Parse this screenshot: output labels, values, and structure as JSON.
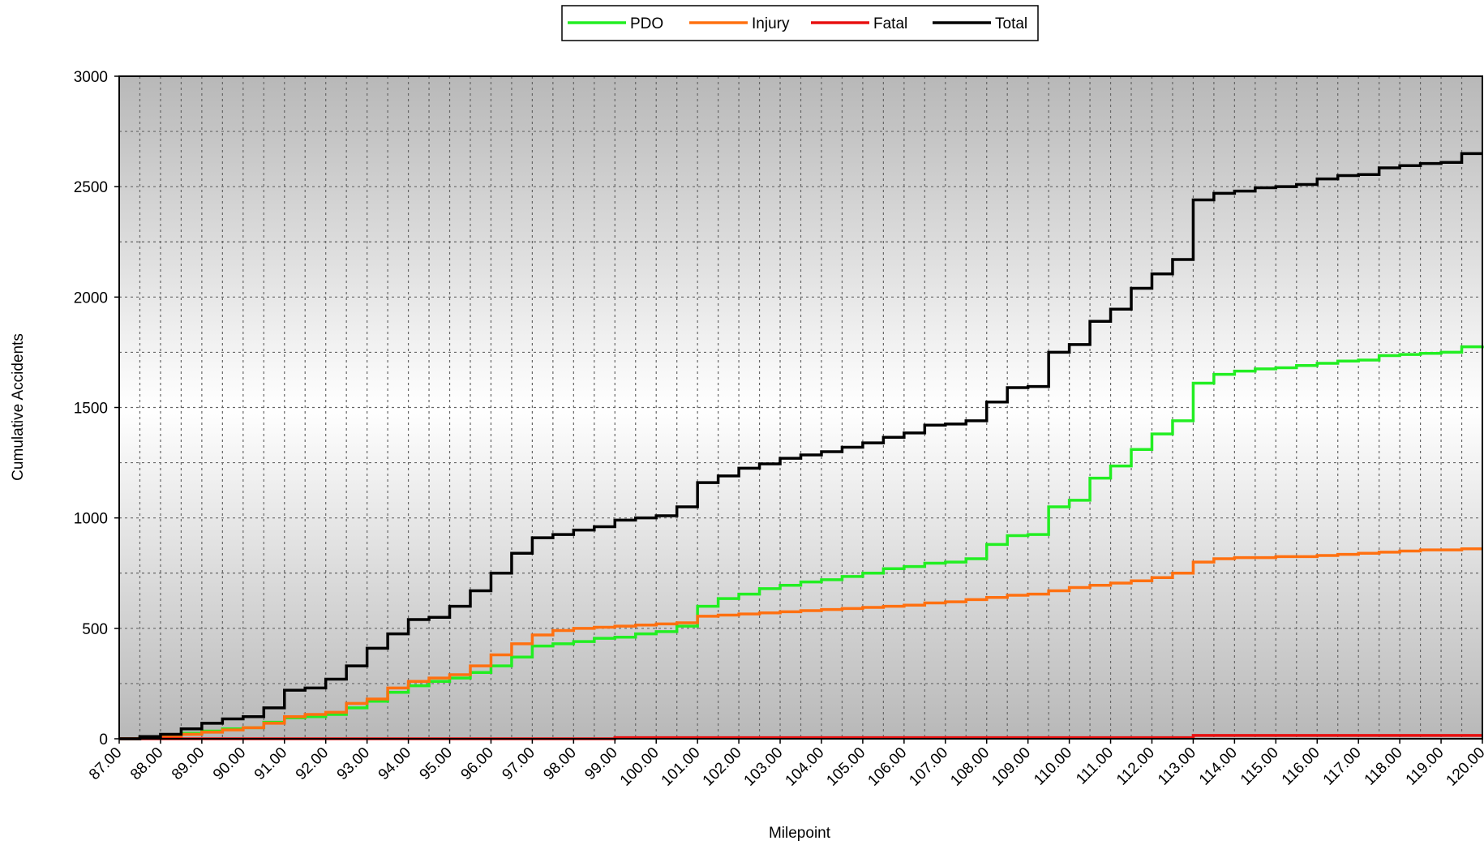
{
  "chart_data": {
    "type": "line",
    "step": true,
    "x_label": "Milepoint",
    "y_label": "Cumulative Accidents",
    "x": [
      87,
      87.5,
      88,
      88.5,
      89,
      89.5,
      90,
      90.5,
      91,
      91.5,
      92,
      92.5,
      93,
      93.5,
      94,
      94.5,
      95,
      95.5,
      96,
      96.5,
      97,
      97.5,
      98,
      98.5,
      99,
      99.5,
      100,
      100.5,
      101,
      101.5,
      102,
      102.5,
      103,
      103.5,
      104,
      104.5,
      105,
      105.5,
      106,
      106.5,
      107,
      107.5,
      108,
      108.5,
      109,
      109.5,
      110,
      110.5,
      111,
      111.5,
      112,
      112.5,
      113,
      113.5,
      114,
      114.5,
      115,
      115.5,
      116,
      116.5,
      117,
      117.5,
      118,
      118.5,
      119,
      119.5,
      120
    ],
    "series": [
      {
        "name": "PDO",
        "color": "#22ee22",
        "values": [
          0,
          5,
          10,
          25,
          35,
          45,
          50,
          75,
          95,
          100,
          110,
          140,
          170,
          210,
          240,
          260,
          275,
          300,
          330,
          370,
          420,
          430,
          440,
          455,
          460,
          475,
          485,
          510,
          600,
          635,
          655,
          680,
          695,
          710,
          720,
          735,
          750,
          770,
          780,
          795,
          800,
          815,
          880,
          920,
          925,
          1050,
          1080,
          1180,
          1235,
          1310,
          1380,
          1440,
          1610,
          1650,
          1665,
          1675,
          1680,
          1690,
          1700,
          1710,
          1715,
          1735,
          1740,
          1745,
          1750,
          1775,
          1780
        ]
      },
      {
        "name": "Injury",
        "color": "#ff7010",
        "values": [
          0,
          5,
          10,
          20,
          30,
          40,
          50,
          70,
          100,
          110,
          120,
          160,
          180,
          230,
          260,
          275,
          290,
          330,
          380,
          430,
          470,
          490,
          500,
          505,
          510,
          515,
          520,
          525,
          555,
          560,
          565,
          570,
          575,
          580,
          585,
          590,
          595,
          600,
          605,
          615,
          620,
          630,
          640,
          650,
          655,
          670,
          685,
          695,
          705,
          715,
          730,
          750,
          800,
          815,
          820,
          820,
          825,
          825,
          830,
          835,
          840,
          845,
          850,
          855,
          855,
          860,
          860
        ]
      },
      {
        "name": "Fatal",
        "color": "#e81010",
        "values": [
          0,
          0,
          0,
          0,
          0,
          0,
          0,
          0,
          0,
          0,
          0,
          0,
          0,
          0,
          0,
          0,
          0,
          0,
          0,
          0,
          0,
          0,
          0,
          0,
          5,
          5,
          5,
          5,
          5,
          5,
          5,
          5,
          5,
          5,
          5,
          5,
          5,
          5,
          5,
          5,
          5,
          5,
          5,
          5,
          5,
          5,
          5,
          5,
          5,
          5,
          5,
          5,
          15,
          15,
          15,
          15,
          15,
          15,
          15,
          15,
          15,
          15,
          15,
          15,
          15,
          15,
          15
        ]
      },
      {
        "name": "Total",
        "color": "#000000",
        "values": [
          0,
          10,
          20,
          45,
          70,
          90,
          100,
          140,
          220,
          230,
          270,
          330,
          410,
          475,
          540,
          550,
          600,
          670,
          750,
          840,
          910,
          925,
          945,
          960,
          990,
          1000,
          1010,
          1050,
          1160,
          1190,
          1225,
          1245,
          1270,
          1285,
          1300,
          1320,
          1340,
          1365,
          1385,
          1420,
          1425,
          1440,
          1525,
          1590,
          1595,
          1750,
          1785,
          1890,
          1945,
          2040,
          2105,
          2170,
          2440,
          2470,
          2480,
          2495,
          2500,
          2510,
          2535,
          2550,
          2555,
          2585,
          2595,
          2605,
          2610,
          2650,
          2650
        ]
      }
    ],
    "xlim": [
      87,
      120
    ],
    "ylim": [
      0,
      3000
    ],
    "xticks": [
      {
        "value": 87,
        "label": "87.00"
      },
      {
        "value": 88,
        "label": "88.00"
      },
      {
        "value": 89,
        "label": "89.00"
      },
      {
        "value": 90,
        "label": "90.00"
      },
      {
        "value": 91,
        "label": "91.00"
      },
      {
        "value": 92,
        "label": "92.00"
      },
      {
        "value": 93,
        "label": "93.00"
      },
      {
        "value": 94,
        "label": "94.00"
      },
      {
        "value": 95,
        "label": "95.00"
      },
      {
        "value": 96,
        "label": "96.00"
      },
      {
        "value": 97,
        "label": "97.00"
      },
      {
        "value": 98,
        "label": "98.00"
      },
      {
        "value": 99,
        "label": "99.00"
      },
      {
        "value": 100,
        "label": "100.00"
      },
      {
        "value": 101,
        "label": "101.00"
      },
      {
        "value": 102,
        "label": "102.00"
      },
      {
        "value": 103,
        "label": "103.00"
      },
      {
        "value": 104,
        "label": "104.00"
      },
      {
        "value": 105,
        "label": "105.00"
      },
      {
        "value": 106,
        "label": "106.00"
      },
      {
        "value": 107,
        "label": "107.00"
      },
      {
        "value": 108,
        "label": "108.00"
      },
      {
        "value": 109,
        "label": "109.00"
      },
      {
        "value": 110,
        "label": "110.00"
      },
      {
        "value": 111,
        "label": "111.00"
      },
      {
        "value": 112,
        "label": "112.00"
      },
      {
        "value": 113,
        "label": "113.00"
      },
      {
        "value": 114,
        "label": "114.00"
      },
      {
        "value": 115,
        "label": "115.00"
      },
      {
        "value": 116,
        "label": "116.00"
      },
      {
        "value": 117,
        "label": "117.00"
      },
      {
        "value": 118,
        "label": "118.00"
      },
      {
        "value": 119,
        "label": "119.00"
      },
      {
        "value": 120,
        "label": "120.00"
      }
    ],
    "yticks": [
      0,
      500,
      1000,
      1500,
      2000,
      2500,
      3000
    ],
    "grid": true,
    "minor_grid": true,
    "legend": "top"
  }
}
